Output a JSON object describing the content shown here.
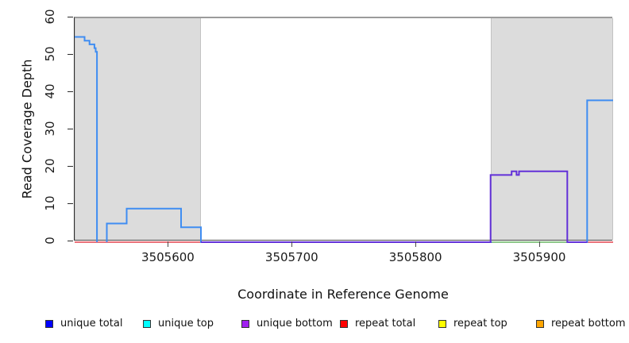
{
  "chart_data": {
    "type": "line",
    "subtype": "step-coverage",
    "title": "",
    "xlabel": "Coordinate in Reference Genome",
    "ylabel": "Read Coverage Depth",
    "xlim": [
      3505524,
      3505959
    ],
    "ylim": [
      0,
      60
    ],
    "grid": false,
    "x_ticks": [
      "3505600",
      "3505700",
      "3505800",
      "3505900"
    ],
    "x_tick_values": [
      3505600,
      3505700,
      3505800,
      3505900
    ],
    "y_ticks": [
      "0",
      "10",
      "20",
      "30",
      "40",
      "50",
      "60"
    ],
    "y_tick_values": [
      0,
      10,
      20,
      30,
      40,
      50,
      60
    ],
    "top_rule_y": 60,
    "shaded_regions": [
      {
        "x0": 3505524,
        "x1": 3505626,
        "color": "#dcdcdc"
      },
      {
        "x0": 3505860,
        "x1": 3505959,
        "color": "#dcdcdc"
      }
    ],
    "series": [
      {
        "name": "repeat total",
        "color": "#e4424d",
        "width": 1.6,
        "segments": [
          [
            [
              3505524,
              0
            ],
            [
              3505959,
              0
            ]
          ]
        ]
      },
      {
        "name": "unique total",
        "color": "#3f8df2",
        "width": 2,
        "segments": [
          [
            [
              3505524,
              55
            ],
            [
              3505532,
              54
            ],
            [
              3505536,
              53
            ],
            [
              3505540,
              52
            ],
            [
              3505541,
              51
            ],
            [
              3505542,
              0
            ]
          ],
          [
            [
              3505550,
              0
            ],
            [
              3505550,
              5
            ],
            [
              3505566,
              9
            ],
            [
              3505610,
              4
            ],
            [
              3505626,
              0
            ],
            [
              3505861,
              0
            ]
          ],
          [
            [
              3505922,
              0
            ],
            [
              3505938,
              38
            ],
            [
              3505959,
              38
            ]
          ]
        ]
      },
      {
        "name": "unlabeled green baseline",
        "color": "#7dcd85",
        "width": 1.8,
        "segments": [
          [
            [
              3505861,
              0
            ],
            [
              3505922,
              0
            ]
          ]
        ]
      },
      {
        "name": "unique bottom",
        "color": "#6230d8",
        "width": 2,
        "segments": [
          [
            [
              3505626,
              0
            ],
            [
              3505860,
              18
            ],
            [
              3505877,
              19
            ],
            [
              3505881,
              18
            ],
            [
              3505883,
              19
            ],
            [
              3505922,
              0
            ],
            [
              3505938,
              0
            ]
          ]
        ]
      }
    ],
    "legend_position": "bottom",
    "legend": [
      {
        "label": "unique total",
        "color": "#0000ff"
      },
      {
        "label": "unique top",
        "color": "#00ffff"
      },
      {
        "label": "unique bottom",
        "color": "#a020f0"
      },
      {
        "label": "repeat total",
        "color": "#ff0000"
      },
      {
        "label": "repeat top",
        "color": "#ffff00"
      },
      {
        "label": "repeat bottom",
        "color": "#ffa500"
      }
    ]
  }
}
